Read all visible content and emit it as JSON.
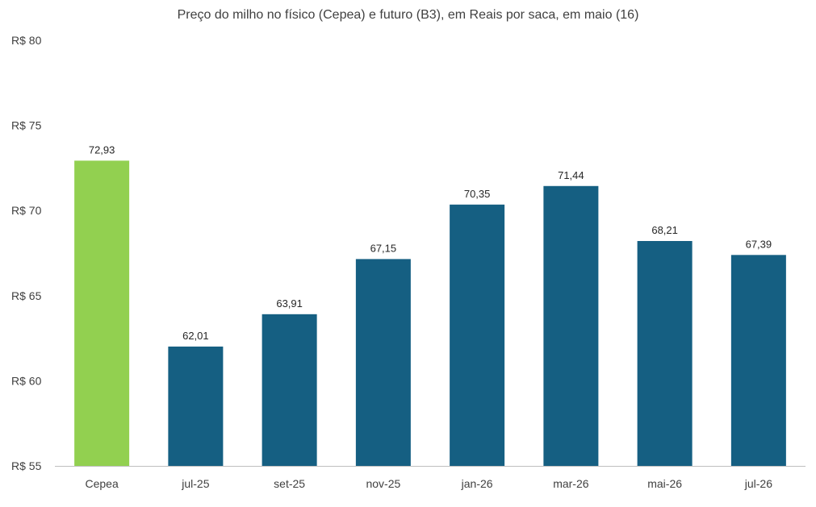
{
  "chart_data": {
    "type": "bar",
    "title": "Preço do milho no físico (Cepea) e futuro (B3), em Reais por saca, em maio (16)",
    "xlabel": "",
    "ylabel": "",
    "categories": [
      "Cepea",
      "jul-25",
      "set-25",
      "nov-25",
      "jan-26",
      "mar-26",
      "mai-26",
      "jul-26"
    ],
    "values": [
      72.93,
      62.01,
      63.91,
      67.15,
      70.35,
      71.44,
      68.21,
      67.39
    ],
    "value_labels": [
      "72,93",
      "62,01",
      "63,91",
      "67,15",
      "70,35",
      "71,44",
      "68,21",
      "67,39"
    ],
    "ylim": [
      55,
      80
    ],
    "yticks": [
      55,
      60,
      65,
      70,
      75,
      80
    ],
    "ytick_labels": [
      "R$ 55",
      "R$ 60",
      "R$ 65",
      "R$ 70",
      "R$ 75",
      "R$ 80"
    ],
    "grid": false,
    "legend": "none",
    "colors": {
      "highlight": "#92d050",
      "bar": "#155f82"
    }
  }
}
